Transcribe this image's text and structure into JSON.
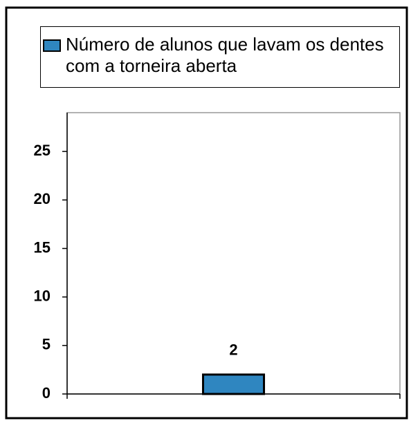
{
  "chart_data": {
    "type": "bar",
    "categories": [
      null
    ],
    "series": [
      {
        "name": "Número de alunos que lavam os dentes com a torneira aberta",
        "color": "#2f86c0",
        "values": [
          2
        ]
      }
    ],
    "ylim": [
      0,
      29
    ],
    "yticks": [
      0,
      5,
      10,
      15,
      20,
      25
    ],
    "legend": "top"
  }
}
